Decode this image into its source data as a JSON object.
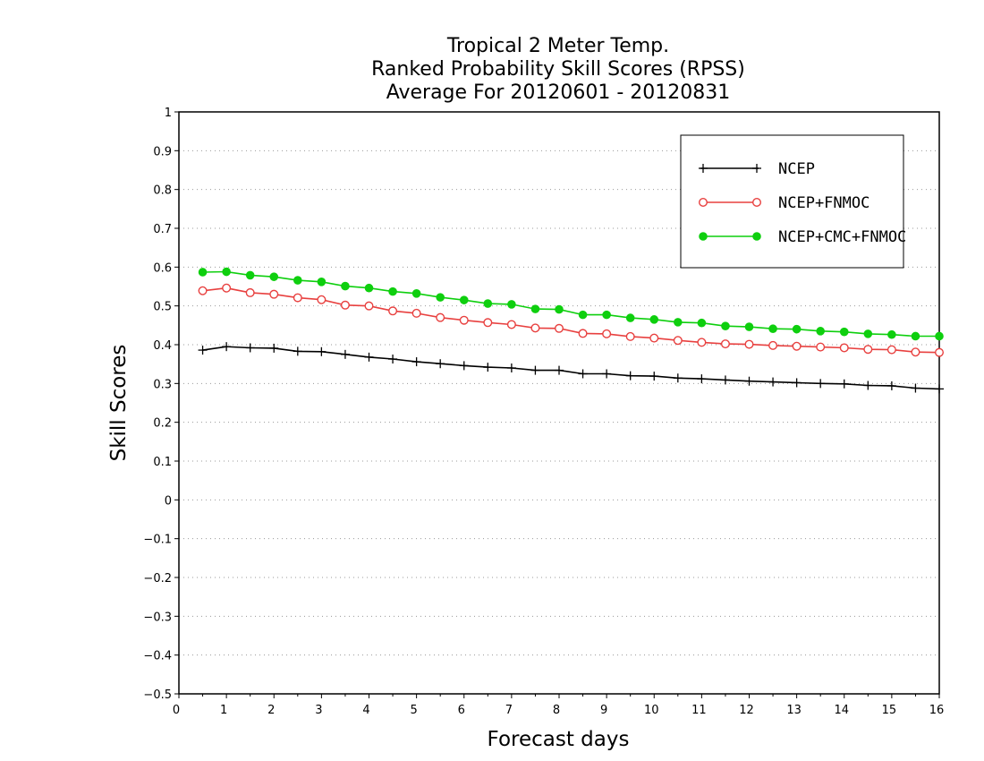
{
  "chart_data": {
    "type": "line",
    "title": [
      "Tropical 2 Meter Temp.",
      "Ranked Probability Skill Scores (RPSS)",
      "Average For 20120601 - 20120831"
    ],
    "xlabel": "Forecast days",
    "ylabel": "Skill Scores",
    "xlim": [
      0,
      16
    ],
    "ylim": [
      -0.5,
      1
    ],
    "xticks": [
      "0",
      "1",
      "2",
      "3",
      "4",
      "5",
      "6",
      "7",
      "8",
      "9",
      "10",
      "11",
      "12",
      "13",
      "14",
      "15",
      "16"
    ],
    "yticks": [
      "−0.5",
      "−0.4",
      "−0.3",
      "−0.2",
      "−0.1",
      "0",
      "0.1",
      "0.2",
      "0.3",
      "0.4",
      "0.5",
      "0.6",
      "0.7",
      "0.8",
      "0.9",
      "1"
    ],
    "grid": true,
    "legend_position": "top-right",
    "x": [
      0.5,
      1,
      1.5,
      2,
      2.5,
      3,
      3.5,
      4,
      4.5,
      5,
      5.5,
      6,
      6.5,
      7,
      7.5,
      8,
      8.5,
      9,
      9.5,
      10,
      10.5,
      11,
      11.5,
      12,
      12.5,
      13,
      13.5,
      14,
      14.5,
      15,
      15.5,
      16
    ],
    "series": [
      {
        "name": "NCEP",
        "color": "#000000",
        "marker": "plus",
        "values": [
          0.386,
          0.395,
          0.392,
          0.391,
          0.383,
          0.382,
          0.375,
          0.368,
          0.363,
          0.356,
          0.351,
          0.346,
          0.342,
          0.34,
          0.334,
          0.334,
          0.325,
          0.325,
          0.32,
          0.319,
          0.314,
          0.312,
          0.309,
          0.306,
          0.304,
          0.302,
          0.3,
          0.299,
          0.295,
          0.294,
          0.288,
          0.286
        ]
      },
      {
        "name": "NCEP+FNMOC",
        "color": "#e8403f",
        "marker": "open-circle",
        "values": [
          0.539,
          0.546,
          0.534,
          0.53,
          0.521,
          0.516,
          0.502,
          0.5,
          0.487,
          0.481,
          0.47,
          0.463,
          0.457,
          0.452,
          0.443,
          0.442,
          0.429,
          0.428,
          0.421,
          0.417,
          0.411,
          0.406,
          0.402,
          0.401,
          0.398,
          0.396,
          0.394,
          0.392,
          0.388,
          0.387,
          0.381,
          0.38
        ]
      },
      {
        "name": "NCEP+CMC+FNMOC",
        "color": "#0ecf0e",
        "marker": "filled-circle",
        "values": [
          0.587,
          0.588,
          0.579,
          0.575,
          0.566,
          0.562,
          0.551,
          0.546,
          0.537,
          0.532,
          0.522,
          0.515,
          0.506,
          0.504,
          0.492,
          0.491,
          0.477,
          0.477,
          0.469,
          0.465,
          0.458,
          0.456,
          0.448,
          0.446,
          0.441,
          0.44,
          0.435,
          0.433,
          0.428,
          0.426,
          0.422,
          0.422
        ]
      }
    ]
  }
}
